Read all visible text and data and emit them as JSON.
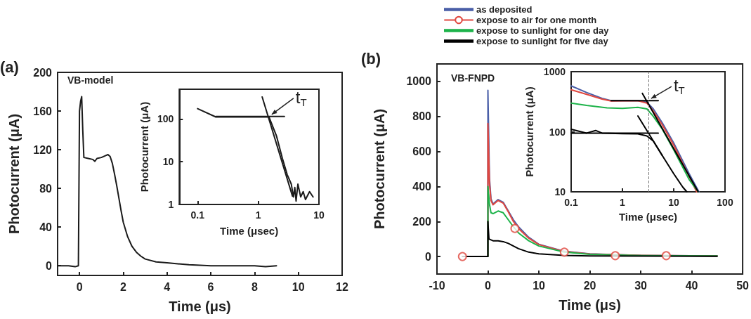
{
  "chart_data": [
    {
      "type": "line",
      "title": "(a)",
      "xlabel": "Time (μs)",
      "ylabel": "Photocurrent (μA)",
      "xlim": [
        -1,
        12
      ],
      "xticks": [
        0,
        2,
        4,
        6,
        8,
        10,
        12
      ],
      "ylim": [
        -10,
        200
      ],
      "yticks": [
        0,
        40,
        80,
        120,
        160,
        200
      ],
      "legend": false,
      "annotations": [
        "VB-model"
      ],
      "series": [
        {
          "color": "#1a1a1a",
          "x": [
            -1,
            -0.5,
            -0.2,
            -0.05,
            0,
            0.05,
            0.1,
            0.15,
            0.2,
            0.4,
            0.6,
            0.7,
            0.8,
            1.0,
            1.2,
            1.3,
            1.4,
            1.5,
            1.6,
            1.7,
            1.8,
            1.9,
            2.0,
            2.2,
            2.4,
            2.6,
            2.8,
            3.0,
            3.5,
            4.0,
            4.5,
            5,
            6,
            7,
            8,
            8.5,
            9
          ],
          "values": [
            0,
            0,
            -1,
            0,
            160,
            170,
            175,
            140,
            112,
            111,
            110,
            108,
            111,
            112,
            114,
            115,
            113,
            106,
            95,
            83,
            70,
            57,
            45,
            30,
            20,
            14,
            10,
            7,
            4,
            3,
            2,
            1,
            0,
            0,
            0,
            -1,
            0
          ]
        }
      ]
    },
    {
      "type": "line",
      "xlabel": "Time (μsec)",
      "ylabel": "Photocurrent (μA)",
      "log": "xy",
      "xlim": [
        0.05,
        10
      ],
      "xticks": [
        0.1,
        1,
        10
      ],
      "ylim": [
        1,
        500
      ],
      "yticks": [
        1,
        10,
        100
      ],
      "legend": false,
      "annotations": [
        {
          "text": "t$_{T}$",
          "x": 1.5,
          "y": 115
        }
      ],
      "series": [
        {
          "color": "#1a1a1a",
          "x": [
            0.1,
            0.2,
            0.5,
            1,
            1.5,
            2,
            2.5,
            3,
            3.5,
            3.8,
            4,
            4.2,
            4.5,
            5,
            5.5,
            6,
            7,
            8
          ],
          "values": [
            176,
            112,
            112,
            112,
            112,
            40,
            12,
            5,
            3,
            1.5,
            2.5,
            1.2,
            3,
            1.5,
            2,
            1.3,
            2,
            1.5
          ]
        },
        {
          "color": "#1a1a1a",
          "x": [
            0.2,
            2.7
          ],
          "values": [
            115,
            115
          ]
        },
        {
          "color": "#1a1a1a",
          "x": [
            1.16,
            3.66
          ],
          "values": [
            330,
            1.57
          ]
        }
      ]
    },
    {
      "type": "line",
      "title": "(b)",
      "xlabel": "Time (μs)",
      "ylabel": "Photocurrent (μA)",
      "xlim": [
        -10,
        50
      ],
      "xticks": [
        -10,
        0,
        10,
        20,
        30,
        40,
        50
      ],
      "ylim": [
        -100,
        1100
      ],
      "yticks": [
        0,
        200,
        400,
        600,
        800,
        1000
      ],
      "legend": "top",
      "annotations": [
        "VB-FNPD"
      ],
      "series": [
        {
          "name": "as deposited",
          "color": "#4a5fa8",
          "x": [
            0,
            0,
            0.3,
            0.6,
            1,
            2,
            3,
            4,
            5,
            6,
            8,
            10,
            15,
            20,
            30,
            45
          ],
          "values": [
            0,
            950,
            450,
            330,
            300,
            325,
            310,
            260,
            210,
            170,
            110,
            70,
            30,
            15,
            6,
            3
          ]
        },
        {
          "name": "expose to air for one month",
          "color": "#e0473f",
          "x": [
            -5,
            0,
            0,
            0.3,
            0.6,
            1,
            2,
            3,
            4,
            5,
            6,
            8,
            10,
            15,
            20,
            30,
            45
          ],
          "values": [
            0,
            0,
            760,
            420,
            320,
            295,
            320,
            305,
            255,
            200,
            160,
            105,
            68,
            28,
            14,
            6,
            3
          ]
        },
        {
          "name": "expose to sunlight for one day",
          "color": "#1db34a",
          "x": [
            0,
            0,
            0.3,
            0.6,
            1,
            2,
            3,
            4,
            5,
            6,
            8,
            10,
            15,
            20,
            30,
            45
          ],
          "values": [
            0,
            400,
            300,
            250,
            245,
            260,
            250,
            210,
            170,
            135,
            90,
            60,
            25,
            12,
            5,
            3
          ]
        },
        {
          "name": "expose to sunlight for five day",
          "color": "#000000",
          "x": [
            -5,
            0,
            0,
            0.2,
            1,
            2,
            3,
            4,
            5,
            6,
            8,
            10,
            15,
            20,
            45
          ],
          "values": [
            0,
            0,
            200,
            100,
            90,
            90,
            85,
            75,
            60,
            45,
            25,
            15,
            6,
            3,
            1
          ]
        },
        {
          "type": "scatter",
          "color": "#e0473f",
          "marker": "circle",
          "x": [
            -5,
            5.3,
            15,
            25,
            35
          ],
          "values": [
            0,
            160,
            25,
            5,
            5
          ]
        }
      ]
    },
    {
      "type": "line",
      "xlabel": "Time (μsec)",
      "ylabel": "Photocurrent (μA)",
      "log": "xy",
      "xlim": [
        0.1,
        100
      ],
      "xticks": [
        0.1,
        1,
        10,
        100
      ],
      "ylim": [
        10,
        1000
      ],
      "yticks": [
        10,
        100,
        1000
      ],
      "legend": false,
      "annotations": [
        {
          "text": "t$_{T}$",
          "x": 3.2,
          "y": 330
        }
      ],
      "ref_lines": [
        {
          "axis": "x",
          "value": 3.2,
          "color": "#777777",
          "line_style": "dashed"
        }
      ],
      "series": [
        {
          "color": "#4a5fa8",
          "x": [
            0.1,
            0.2,
            0.4,
            0.6,
            1,
            2,
            3,
            4,
            6,
            10,
            20,
            31
          ],
          "values": [
            580,
            450,
            360,
            330,
            330,
            330,
            310,
            240,
            140,
            65,
            20,
            10
          ]
        },
        {
          "color": "#e0473f",
          "x": [
            0.1,
            0.2,
            0.4,
            0.6,
            1,
            2,
            3,
            4,
            6,
            10,
            20,
            28
          ],
          "values": [
            500,
            420,
            350,
            325,
            328,
            328,
            300,
            220,
            130,
            60,
            18,
            10
          ]
        },
        {
          "color": "#1db34a",
          "x": [
            0.1,
            0.2,
            0.5,
            1,
            2,
            3,
            4,
            6,
            10,
            20,
            30
          ],
          "values": [
            300,
            275,
            250,
            245,
            255,
            240,
            180,
            110,
            50,
            16,
            10
          ]
        },
        {
          "color": "#000000",
          "x": [
            0.1,
            0.2,
            0.3,
            0.4,
            1,
            2,
            3,
            4,
            6,
            10,
            15,
            18
          ],
          "values": [
            110,
            95,
            105,
            95,
            93,
            92,
            85,
            70,
            40,
            20,
            12,
            10
          ]
        },
        {
          "color": "#000000",
          "x": [
            0.6,
            5
          ],
          "values": [
            330,
            330
          ]
        },
        {
          "color": "#000000",
          "x": [
            2.45,
            30
          ],
          "values": [
            435,
            10
          ]
        },
        {
          "color": "#000000",
          "x": [
            0.1,
            5
          ],
          "values": [
            95,
            95
          ]
        },
        {
          "color": "#000000",
          "x": [
            2.0,
            6
          ],
          "values": [
            183,
            40
          ]
        }
      ]
    }
  ]
}
